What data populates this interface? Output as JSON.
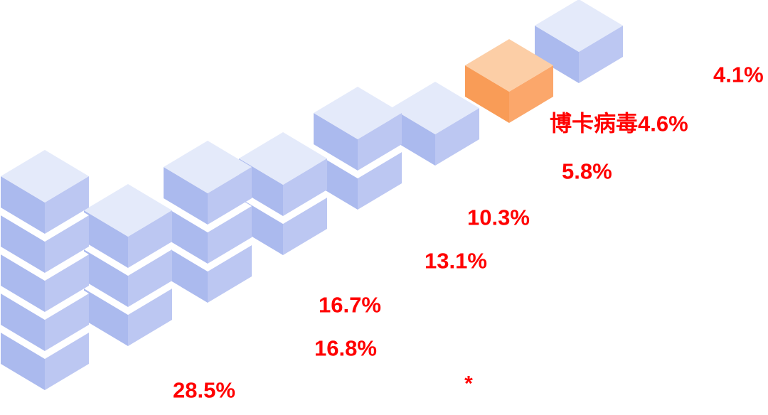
{
  "chart_data": {
    "type": "bar",
    "variant": "isometric-cube-stacks",
    "categories": [
      "",
      "",
      "",
      "",
      "",
      "",
      "博卡病毒",
      ""
    ],
    "values": [
      28.5,
      16.8,
      16.7,
      13.1,
      10.3,
      5.8,
      4.6,
      4.1
    ],
    "value_labels": [
      "28.5%",
      "16.8%",
      "16.7%",
      "13.1%",
      "10.3%",
      "5.8%",
      "4.6%",
      "4.1%"
    ],
    "cubes_per_stack": [
      5,
      3,
      3,
      2,
      2,
      1,
      1,
      1
    ],
    "highlighted_index": 6,
    "highlighted_category": "博卡病毒",
    "footnote_marker": "*",
    "axes_visible": false,
    "legend_visible": false,
    "label_position": "lower-right-of-stack",
    "colors": {
      "label_red": "#FF0000",
      "cube_blue_top": "#E4EAFA",
      "cube_blue_left": "#ABBAEE",
      "cube_blue_right": "#BCC7F2",
      "cube_orange_top": "#FCCEA6",
      "cube_orange_left": "#F99C57",
      "cube_orange_right": "#FBA76B",
      "gap_white": "#FFFFFF",
      "background": "#FFFFFF"
    }
  }
}
